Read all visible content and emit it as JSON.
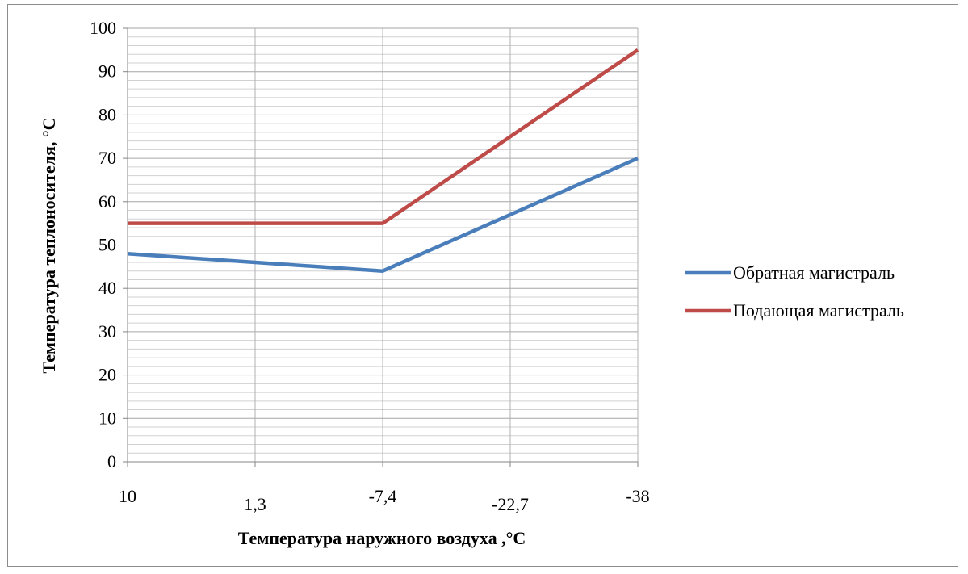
{
  "chart_data": {
    "type": "line",
    "title": "",
    "xlabel": "Температура наружного воздуха ,°С",
    "ylabel": "Температура теплоносителя, °С",
    "categories": [
      "10",
      "1,3",
      "-7,4",
      "-22,7",
      "-38"
    ],
    "x": [
      10,
      1.3,
      -7.4,
      -22.7,
      -38
    ],
    "ylim": [
      0,
      100
    ],
    "yticks": [
      "0",
      "10",
      "20",
      "30",
      "40",
      "50",
      "60",
      "70",
      "80",
      "90",
      "100"
    ],
    "grid": true,
    "legend_position": "right",
    "series": [
      {
        "name": "Обратная магистраль",
        "values": [
          48,
          46,
          44,
          57,
          70
        ],
        "color": "#4a7ebb"
      },
      {
        "name": "Подающая магистраль",
        "values": [
          55,
          55,
          55,
          75,
          95
        ],
        "color": "#be4b48"
      }
    ]
  }
}
